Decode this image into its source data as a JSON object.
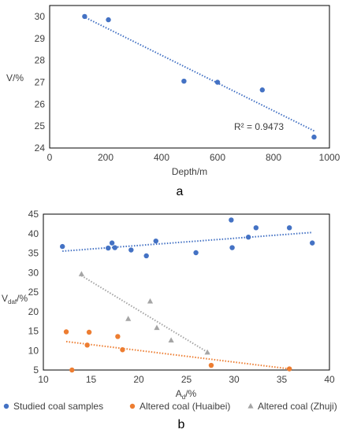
{
  "chart_data": [
    {
      "type": "scatter",
      "panel_label": "a",
      "xlabel": "Depth/m",
      "ylabel": "V/%",
      "xlim": [
        0,
        1000
      ],
      "ylim": [
        24,
        30.5
      ],
      "xticks": [
        "0",
        "200",
        "400",
        "600",
        "800",
        "1000"
      ],
      "yticks": [
        "24",
        "25",
        "26",
        "27",
        "28",
        "29",
        "30"
      ],
      "grid": false,
      "annotation": "R² = 0.9473",
      "series": [
        {
          "color": "#4472C4",
          "x": [
            125,
            210,
            480,
            600,
            760,
            945
          ],
          "y": [
            30.0,
            29.85,
            27.05,
            27.0,
            26.65,
            24.5
          ],
          "trendline": {
            "x": [
              120,
              950
            ],
            "y": [
              30.0,
              24.75
            ]
          }
        }
      ]
    },
    {
      "type": "scatter",
      "panel_label": "b",
      "xlabel_main": "A",
      "xlabel_sub": "d",
      "xlabel_suffix": "/%",
      "ylabel_main": "V",
      "ylabel_sub": "daf",
      "ylabel_suffix": "/%",
      "xlim": [
        10,
        40
      ],
      "ylim": [
        5,
        45
      ],
      "xticks": [
        "10",
        "15",
        "20",
        "25",
        "30",
        "35",
        "40"
      ],
      "yticks": [
        "5",
        "10",
        "15",
        "20",
        "25",
        "30",
        "35",
        "40",
        "45"
      ],
      "grid": false,
      "legend_position": "bottom",
      "series": [
        {
          "name": "Studied coal samples",
          "color": "#4472C4",
          "marker": "circle",
          "x": [
            12.0,
            16.8,
            17.2,
            17.5,
            19.2,
            20.8,
            21.8,
            26.0,
            29.7,
            29.8,
            31.5,
            32.3,
            35.8,
            38.2
          ],
          "y": [
            36.7,
            36.3,
            37.6,
            36.4,
            35.8,
            34.3,
            38.1,
            35.1,
            43.5,
            36.4,
            39.1,
            41.5,
            41.5,
            37.6
          ],
          "trendline": {
            "x": [
              12,
              38.2
            ],
            "y": [
              35.5,
              40.3
            ]
          }
        },
        {
          "name": "Altered coal (Huaibei)",
          "color": "#ED7D31",
          "marker": "circle",
          "x": [
            12.4,
            13.0,
            14.6,
            14.8,
            17.8,
            18.3,
            27.6,
            35.8
          ],
          "y": [
            14.8,
            5.0,
            11.4,
            14.7,
            13.6,
            10.2,
            6.2,
            5.3
          ],
          "trendline": {
            "x": [
              12.4,
              35.8
            ],
            "y": [
              12.3,
              5.3
            ]
          }
        },
        {
          "name": "Altered coal (Zhuji)",
          "color": "#A5A5A5",
          "marker": "triangle",
          "x": [
            14.0,
            18.9,
            21.2,
            21.9,
            23.4,
            27.2
          ],
          "y": [
            29.6,
            18.1,
            22.6,
            15.8,
            12.6,
            9.5
          ],
          "trendline": {
            "x": [
              14.0,
              27.4
            ],
            "y": [
              29.2,
              9.3
            ]
          }
        }
      ]
    }
  ]
}
